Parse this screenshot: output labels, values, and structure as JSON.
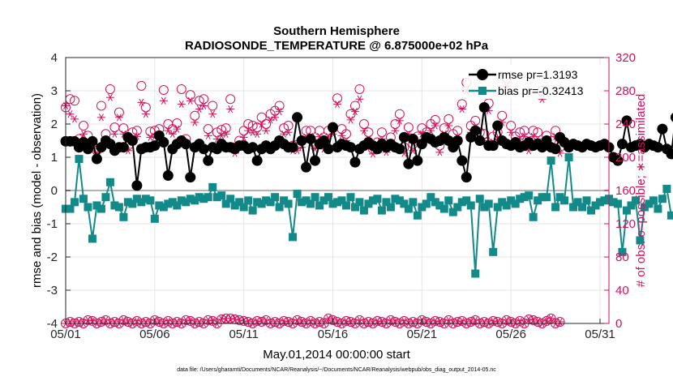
{
  "chart_data": {
    "type": "line",
    "title": "Southern Hemisphere",
    "subtitle": "RADIOSONDE_TEMPERATURE @ 6.875000e+02 hPa",
    "xlabel": "May.01,2014 00:00:00 start",
    "ylabel": "rmse and bias (model - observation)",
    "ylabel_right": "# of obs: o=possible; ∗=assimilated",
    "footnote": "data file: /Users/gharamti/Documents/NCAR/Reanalysis/~/Documents/NCAR/Reanalysis/webpub/obs_diag_output_2014-05.nc",
    "x_ticks": [
      "05/01",
      "05/06",
      "05/11",
      "05/16",
      "05/21",
      "05/26",
      "05/31"
    ],
    "x_tick_days": [
      0,
      5,
      10,
      15,
      20,
      25,
      30
    ],
    "xlim": [
      0,
      30.5
    ],
    "ylim": [
      -4,
      4
    ],
    "y_ticks": [
      "4",
      "3",
      "2",
      "1",
      "0",
      "-1",
      "-2",
      "-3",
      "-4"
    ],
    "ylim_right": [
      0,
      320
    ],
    "y_ticks_right": [
      "320",
      "280",
      "240",
      "200",
      "160",
      "120",
      "80",
      "40",
      "0"
    ],
    "colors": {
      "rmse": "#000000",
      "bias": "#138a8a",
      "obs": "#d3115e",
      "zero_line": "#b3b3b3"
    },
    "series": [
      {
        "name": "rmse",
        "legend_label": "rmse pr=1.3193",
        "marker": "circle",
        "values": [
          1.48,
          1.48,
          1.48,
          1.3,
          1.45,
          1.25,
          1.48,
          0.95,
          1.3,
          1.5,
          1.4,
          1.2,
          1.3,
          1.3,
          1.6,
          1.5,
          0.15,
          1.25,
          1.3,
          1.3,
          1.35,
          1.65,
          1.45,
          0.45,
          1.25,
          1.4,
          1.5,
          1.4,
          0.4,
          1.3,
          1.4,
          1.25,
          0.9,
          1.3,
          1.25,
          1.4,
          1.3,
          1.3,
          1.25,
          1.35,
          1.35,
          1.25,
          1.3,
          0.9,
          1.25,
          1.35,
          1.25,
          1.35,
          1.5,
          1.4,
          1.3,
          1.3,
          2.2,
          1.5,
          0.7,
          1.55,
          0.9,
          1.4,
          1.5,
          1.25,
          1.9,
          1.3,
          1.4,
          1.35,
          1.3,
          0.85,
          1.25,
          1.35,
          1.45,
          1.35,
          1.25,
          1.4,
          1.3,
          1.4,
          1.3,
          1.25,
          1.6,
          0.8,
          1.55,
          0.9,
          1.4,
          1.6,
          1.55,
          1.45,
          1.5,
          1.6,
          1.5,
          1.3,
          1.5,
          0.9,
          0.4,
          1.6,
          1.8,
          1.5,
          2.5,
          1.35,
          1.35,
          1.95,
          1.5,
          1.4,
          1.35,
          1.45,
          1.3,
          1.35,
          1.45,
          1.35,
          1.4,
          1.3,
          1.5,
          1.3,
          1.25,
          1.6,
          1.45,
          1.3,
          1.4,
          1.35,
          1.3,
          1.4,
          1.35,
          1.3,
          1.35,
          1.4,
          1.3,
          1.0,
          0.9,
          1.4,
          2.1,
          1.3,
          1.35,
          1.4,
          1.3,
          1.4,
          1.35,
          1.3,
          1.85,
          1.25,
          1.1,
          2.2
        ]
      },
      {
        "name": "bias",
        "legend_label": "bias pr=-0.32413",
        "marker": "square",
        "values": [
          -0.55,
          -0.55,
          -0.35,
          0.95,
          -0.25,
          -0.5,
          -1.45,
          -0.45,
          -0.55,
          -0.2,
          0.25,
          -0.45,
          -0.5,
          -0.8,
          -0.35,
          -0.4,
          -0.25,
          -0.35,
          -0.25,
          -0.3,
          -0.85,
          -0.45,
          -0.5,
          -0.4,
          -0.35,
          -0.45,
          -0.3,
          -0.35,
          -0.25,
          -0.3,
          -0.2,
          -0.25,
          -0.2,
          0.1,
          -0.2,
          -0.15,
          -0.4,
          -0.25,
          -0.45,
          -0.35,
          -0.5,
          -0.3,
          -0.6,
          -0.35,
          -0.4,
          -0.3,
          -0.35,
          -0.2,
          -0.5,
          -0.3,
          -0.4,
          -1.4,
          -0.1,
          -0.35,
          -0.3,
          -0.4,
          -0.2,
          -0.45,
          -0.3,
          -0.2,
          -0.4,
          -0.35,
          -0.3,
          -0.45,
          -0.2,
          -0.5,
          -0.35,
          -0.6,
          -0.4,
          -0.3,
          -0.25,
          -0.6,
          -0.35,
          -0.5,
          -0.25,
          -0.3,
          -0.4,
          -0.55,
          -0.35,
          -0.75,
          -0.5,
          -0.4,
          -0.2,
          -0.35,
          -0.45,
          -0.55,
          -0.3,
          -0.65,
          -0.5,
          -0.35,
          -0.3,
          -0.45,
          -2.5,
          -0.25,
          -0.5,
          -0.4,
          -1.85,
          -0.5,
          -0.35,
          -0.45,
          -0.3,
          -0.4,
          -0.25,
          -0.2,
          -0.15,
          -0.8,
          -0.3,
          -0.2,
          -0.2,
          0.9,
          -0.5,
          -0.2,
          -0.3,
          1.0,
          -0.5,
          -0.35,
          -0.5,
          -0.3,
          -0.6,
          -0.45,
          -0.35,
          -0.3,
          -0.25,
          -0.35,
          -0.4,
          -1.85,
          -0.6,
          -0.45,
          -0.3,
          -1.5,
          -0.5,
          -0.4,
          -0.3,
          -0.55,
          -0.25,
          0.05,
          -0.75
        ]
      },
      {
        "name": "obs_possible",
        "marker": "circle-open",
        "values": [
          260,
          270,
          268,
          222,
          238,
          226,
          216,
          208,
          262,
          228,
          282,
          236,
          254,
          235,
          214,
          230,
          232,
          286,
          260,
          231,
          232,
          234,
          281,
          240,
          234,
          241,
          282,
          222,
          275,
          250,
          268,
          270,
          234,
          262,
          230,
          233,
          235,
          270,
          212,
          220,
          232,
          240,
          238,
          236,
          248,
          240,
          252,
          256,
          262,
          235,
          238,
          214,
          215,
          220,
          232,
          232,
          216,
          232,
          218,
          232,
          235,
          271,
          234,
          228,
          252,
          262,
          282,
          240,
          230,
          210,
          218,
          230,
          214,
          224,
          240,
          252,
          212,
          236,
          216,
          225,
          235,
          230,
          240,
          245,
          214,
          235,
          246,
          228,
          232,
          264,
          290,
          238,
          244,
          230,
          228,
          265,
          225,
          230,
          250,
          295,
          238,
          225,
          230,
          232,
          216,
          232,
          230,
          280,
          226,
          220,
          232,
          212
        ]
      },
      {
        "name": "obs_assimilated",
        "marker": "asterisk",
        "values": [
          262,
          252,
          246,
          214,
          228,
          218,
          210,
          205,
          248,
          218,
          272,
          228,
          248,
          228,
          208,
          222,
          225,
          266,
          252,
          224,
          225,
          226,
          268,
          232,
          228,
          234,
          264,
          214,
          268,
          242,
          258,
          262,
          226,
          252,
          222,
          226,
          228,
          258,
          205,
          212,
          224,
          232,
          230,
          228,
          240,
          232,
          245,
          248,
          255,
          228,
          230,
          208,
          208,
          212,
          224,
          225,
          210,
          225,
          210,
          225,
          228,
          264,
          226,
          220,
          245,
          255,
          270,
          232,
          222,
          204,
          210,
          222,
          206,
          216,
          232,
          244,
          205,
          228,
          208,
          218,
          228,
          222,
          232,
          238,
          206,
          228,
          238,
          220,
          224,
          258,
          280,
          230,
          236,
          222,
          220,
          256,
          218,
          222,
          242,
          285,
          230,
          218,
          222,
          225,
          208,
          225,
          222,
          270,
          218,
          212,
          225,
          205
        ]
      },
      {
        "name": "obs_possible_lower",
        "marker": "circle-open",
        "values": [
          0,
          2,
          0,
          2,
          0,
          4,
          3,
          0,
          2,
          4,
          0,
          2,
          0,
          4,
          2,
          0,
          3,
          0,
          2,
          0,
          4,
          2,
          0,
          3,
          0,
          2,
          0,
          4,
          3,
          0,
          2,
          0,
          4,
          3,
          0,
          5,
          6,
          6,
          5,
          4,
          3,
          2,
          0,
          3,
          2,
          4,
          0,
          2,
          0,
          3,
          2,
          0,
          4,
          2,
          0,
          3,
          0,
          2,
          0,
          6,
          4,
          2,
          0,
          3,
          2,
          0,
          4,
          0,
          2,
          0,
          3,
          2,
          0,
          4,
          2,
          0,
          3,
          0,
          2,
          0,
          4,
          2,
          0,
          3,
          2,
          0,
          4,
          0,
          2,
          3,
          0,
          2,
          4,
          0,
          2,
          0,
          3,
          2,
          0,
          4,
          2,
          0,
          3,
          0,
          5,
          4,
          2,
          0,
          3,
          6,
          0,
          2
        ]
      },
      {
        "name": "obs_assimilated_lower",
        "marker": "asterisk",
        "values": [
          0,
          2,
          0,
          2,
          0,
          4,
          3,
          0,
          2,
          4,
          0,
          2,
          0,
          4,
          2,
          0,
          3,
          0,
          2,
          0,
          4,
          2,
          0,
          3,
          0,
          2,
          0,
          4,
          3,
          0,
          2,
          0,
          4,
          3,
          0,
          5,
          6,
          6,
          5,
          4,
          3,
          2,
          0,
          3,
          2,
          4,
          0,
          2,
          0,
          3,
          2,
          0,
          4,
          2,
          0,
          3,
          0,
          2,
          0,
          6,
          4,
          2,
          0,
          3,
          2,
          0,
          4,
          0,
          2,
          0,
          3,
          2,
          0,
          4,
          2,
          0,
          3,
          0,
          2,
          0,
          4,
          2,
          0,
          3,
          2,
          0,
          4,
          0,
          2,
          3,
          0,
          2,
          4,
          0,
          2,
          0,
          3,
          2,
          0,
          4,
          2,
          0,
          3,
          0,
          5,
          4,
          2,
          0,
          3,
          6,
          0,
          2
        ]
      }
    ]
  }
}
